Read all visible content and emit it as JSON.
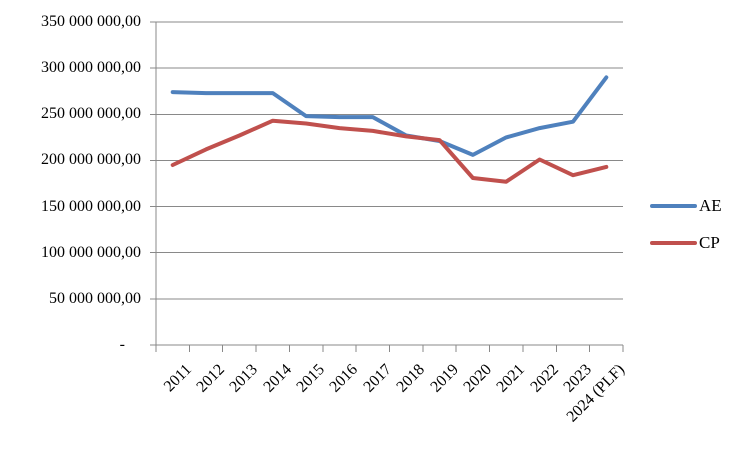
{
  "chart_data": {
    "type": "line",
    "categories": [
      "2011",
      "2012",
      "2013",
      "2014",
      "2015",
      "2016",
      "2017",
      "2018",
      "2019",
      "2020",
      "2021",
      "2022",
      "2023",
      "2024 (PLF)"
    ],
    "series": [
      {
        "name": "AE",
        "color": "#4F81BD",
        "values": [
          274000000,
          273000000,
          273000000,
          273000000,
          248000000,
          247000000,
          247000000,
          227000000,
          221000000,
          206000000,
          225000000,
          235000000,
          242000000,
          290000000
        ]
      },
      {
        "name": "CP",
        "color": "#C0504D",
        "values": [
          195000000,
          212000000,
          227000000,
          243000000,
          240000000,
          235000000,
          232000000,
          226000000,
          222000000,
          181000000,
          177000000,
          201000000,
          184000000,
          193000000
        ]
      }
    ],
    "title": "",
    "xlabel": "",
    "ylabel": "",
    "ylim": [
      0,
      350000000
    ],
    "y_tick_step": 50000000,
    "y_tick_labels": [
      "350 000 000,00",
      "300 000 000,00",
      "250 000 000,00",
      "200 000 000,00",
      "150 000 000,00",
      "100 000 000,00",
      "50 000 000,00",
      "-    "
    ],
    "grid": true,
    "legend_position": "right"
  },
  "colors": {
    "gridline": "#898989",
    "axis": "#898989",
    "text": "#000000",
    "background": "#ffffff"
  }
}
